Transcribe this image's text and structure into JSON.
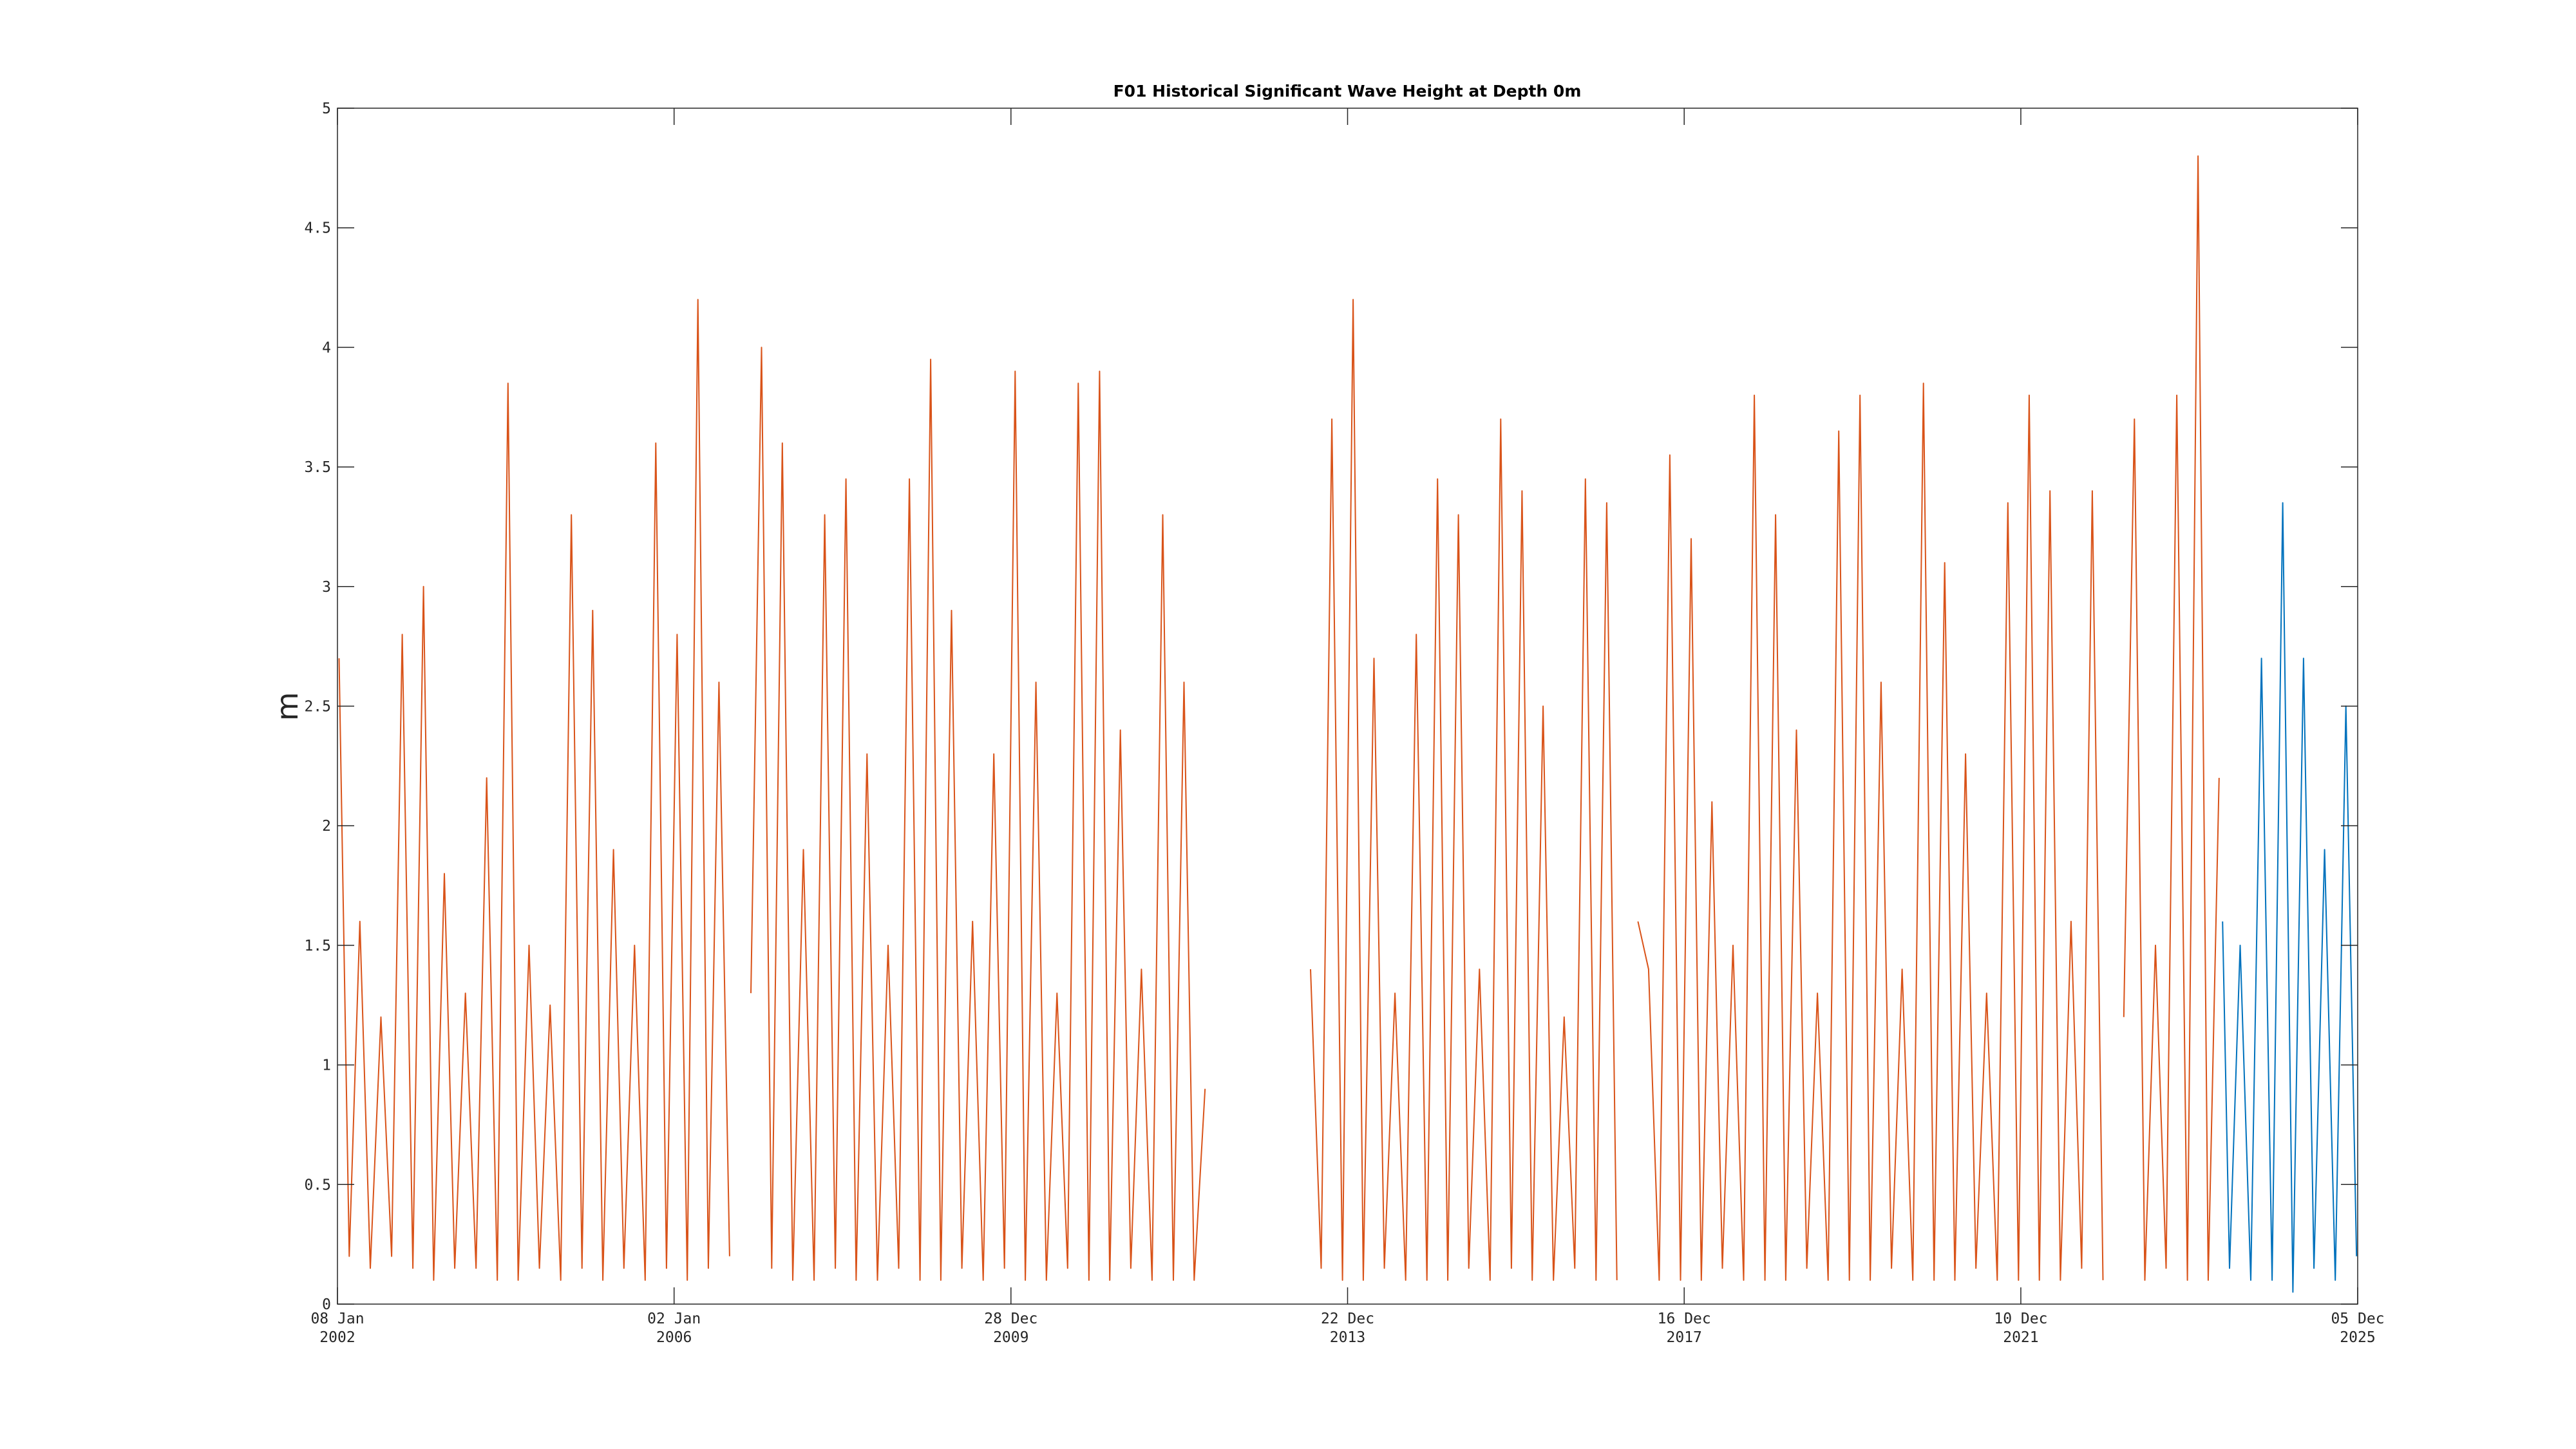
{
  "chart_data": {
    "type": "line",
    "title": "F01 Historical Significant Wave Height at Depth 0m",
    "ylabel": "m",
    "xlim": [
      "2002-01-08",
      "2025-12-05"
    ],
    "xticks": [
      {
        "value": "2002-01-08",
        "label": [
          "08 Jan",
          "2002"
        ]
      },
      {
        "value": "2006-01-02",
        "label": [
          "02 Jan",
          "2006"
        ]
      },
      {
        "value": "2009-12-28",
        "label": [
          "28 Dec",
          "2009"
        ]
      },
      {
        "value": "2013-12-22",
        "label": [
          "22 Dec",
          "2013"
        ]
      },
      {
        "value": "2017-12-16",
        "label": [
          "16 Dec",
          "2017"
        ]
      },
      {
        "value": "2021-12-10",
        "label": [
          "10 Dec",
          "2021"
        ]
      },
      {
        "value": "2025-12-05",
        "label": [
          "05 Dec",
          "2025"
        ]
      }
    ],
    "ylim": [
      0,
      5
    ],
    "yticks": [
      0,
      0.5,
      1,
      1.5,
      2,
      2.5,
      3,
      3.5,
      4,
      4.5,
      5
    ],
    "series": [
      {
        "color": "#D95319",
        "x": [
          "2002-01-15",
          "2002-02-28",
          "2002-04-15",
          "2002-05-30",
          "2002-07-15",
          "2002-08-30",
          "2002-10-15",
          "2002-11-30",
          "2003-01-15",
          "2003-02-28",
          "2003-04-15",
          "2003-05-30",
          "2003-07-15",
          "2003-08-30",
          "2003-10-15",
          "2003-11-30",
          "2004-01-15",
          "2004-02-28",
          "2004-04-15",
          "2004-05-30",
          "2004-07-15",
          "2004-08-30",
          "2004-10-15",
          "2004-11-30",
          "2005-01-15",
          "2005-02-28",
          "2005-04-15",
          "2005-05-30",
          "2005-07-15",
          "2005-08-30",
          "2005-10-15",
          "2005-11-30",
          "2006-01-15",
          "2006-02-28",
          "2006-04-15",
          "2006-05-30",
          "2006-07-15",
          "2006-08-30",
          "2006-10-15",
          "2006-11-30",
          "2007-01-15",
          "2007-02-28",
          "2007-04-15",
          "2007-05-30",
          "2007-07-15",
          "2007-08-30",
          "2007-10-15",
          "2007-11-30",
          "2008-01-15",
          "2008-02-28",
          "2008-04-15",
          "2008-05-30",
          "2008-07-15",
          "2008-08-30",
          "2008-10-15",
          "2008-11-30",
          "2009-01-15",
          "2009-02-28",
          "2009-04-15",
          "2009-05-30",
          "2009-07-15",
          "2009-08-30",
          "2009-10-15",
          "2009-11-30",
          "2010-01-15",
          "2010-02-28",
          "2010-04-15",
          "2010-05-30",
          "2010-07-15",
          "2010-08-30",
          "2010-10-15",
          "2010-11-30",
          "2011-01-15",
          "2011-02-28",
          "2011-04-15",
          "2011-05-30",
          "2011-07-15",
          "2011-08-30",
          "2011-10-15",
          "2011-11-30",
          "2012-01-15",
          "2012-02-28",
          "2012-04-15",
          "2012-05-30",
          "2013-07-15",
          "2013-08-30",
          "2013-10-15",
          "2013-11-30",
          "2014-01-15",
          "2014-02-28",
          "2014-04-15",
          "2014-05-30",
          "2014-07-15",
          "2014-08-30",
          "2014-10-15",
          "2014-11-30",
          "2015-01-15",
          "2015-02-28",
          "2015-04-15",
          "2015-05-30",
          "2015-07-15",
          "2015-08-30",
          "2015-10-15",
          "2015-11-30",
          "2016-01-15",
          "2016-02-28",
          "2016-04-15",
          "2016-05-30",
          "2016-07-15",
          "2016-08-30",
          "2016-10-15",
          "2016-11-30",
          "2017-01-15",
          "2017-02-28",
          "2017-04-15",
          "2017-05-30",
          "2017-07-15",
          "2017-08-30",
          "2017-10-15",
          "2017-11-30",
          "2018-01-15",
          "2018-02-28",
          "2018-04-15",
          "2018-05-30",
          "2018-07-15",
          "2018-08-30",
          "2018-10-15",
          "2018-11-30",
          "2019-01-15",
          "2019-02-28",
          "2019-04-15",
          "2019-05-30",
          "2019-07-15",
          "2019-08-30",
          "2019-10-15",
          "2019-11-30",
          "2020-01-15",
          "2020-02-28",
          "2020-04-15",
          "2020-05-30",
          "2020-07-15",
          "2020-08-30",
          "2020-10-15",
          "2020-11-30",
          "2021-01-15",
          "2021-02-28",
          "2021-04-15",
          "2021-05-30",
          "2021-07-15",
          "2021-08-30",
          "2021-10-15",
          "2021-11-30",
          "2022-01-15",
          "2022-02-28",
          "2022-04-15",
          "2022-05-30",
          "2022-07-15",
          "2022-08-30",
          "2022-10-15",
          "2022-11-30",
          "2023-01-15",
          "2023-02-28",
          "2023-04-15",
          "2023-05-30",
          "2023-07-15",
          "2023-08-30",
          "2023-10-15",
          "2023-11-30",
          "2024-01-15",
          "2024-02-28",
          "2024-04-15"
        ],
        "values": [
          2.7,
          0.2,
          1.6,
          0.15,
          1.2,
          0.2,
          2.8,
          0.15,
          3.0,
          0.1,
          1.8,
          0.15,
          1.3,
          0.15,
          2.2,
          0.1,
          3.85,
          0.1,
          1.5,
          0.15,
          1.25,
          0.1,
          3.3,
          0.15,
          2.9,
          0.1,
          1.9,
          0.15,
          1.5,
          0.1,
          3.6,
          0.15,
          2.8,
          0.1,
          4.2,
          0.15,
          2.6,
          0.2,
          null,
          1.3,
          4.0,
          0.15,
          3.6,
          0.1,
          1.9,
          0.1,
          3.3,
          0.15,
          3.45,
          0.1,
          2.3,
          0.1,
          1.5,
          0.15,
          3.45,
          0.1,
          3.95,
          0.1,
          2.9,
          0.15,
          1.6,
          0.1,
          2.3,
          0.15,
          3.9,
          0.1,
          2.6,
          0.1,
          1.3,
          0.15,
          3.85,
          0.1,
          3.9,
          0.1,
          2.4,
          0.15,
          1.4,
          0.1,
          3.3,
          0.1,
          2.6,
          0.1,
          0.9,
          null,
          1.4,
          0.15,
          3.7,
          0.1,
          4.2,
          0.1,
          2.7,
          0.15,
          1.3,
          0.1,
          2.8,
          0.1,
          3.45,
          0.1,
          3.3,
          0.15,
          1.4,
          0.1,
          3.7,
          0.15,
          3.4,
          0.1,
          2.5,
          0.1,
          1.2,
          0.15,
          3.45,
          0.1,
          3.35,
          0.1,
          null,
          1.6,
          1.4,
          0.1,
          3.55,
          0.1,
          3.2,
          0.1,
          2.1,
          0.15,
          1.5,
          0.1,
          3.8,
          0.1,
          3.3,
          0.1,
          2.4,
          0.15,
          1.3,
          0.1,
          3.65,
          0.1,
          3.8,
          0.1,
          2.6,
          0.15,
          1.4,
          0.1,
          3.85,
          0.1,
          3.1,
          0.1,
          2.3,
          0.15,
          1.3,
          0.1,
          3.35,
          0.1,
          3.8,
          0.1,
          3.4,
          0.1,
          1.6,
          0.15,
          3.4,
          0.1,
          null,
          1.2,
          3.7,
          0.1,
          1.5,
          0.15,
          3.8,
          0.1,
          4.8,
          0.1,
          2.2
        ]
      },
      {
        "color": "#0072BD",
        "x": [
          "2024-04-30",
          "2024-05-30",
          "2024-07-15",
          "2024-08-30",
          "2024-10-15",
          "2024-11-30",
          "2025-01-15",
          "2025-02-28",
          "2025-04-15",
          "2025-05-30",
          "2025-07-15",
          "2025-08-30",
          "2025-10-15",
          "2025-11-30"
        ],
        "values": [
          1.6,
          0.15,
          1.5,
          0.1,
          2.7,
          0.1,
          3.35,
          0.05,
          2.7,
          0.15,
          1.9,
          0.1,
          2.5,
          0.2
        ]
      }
    ]
  }
}
